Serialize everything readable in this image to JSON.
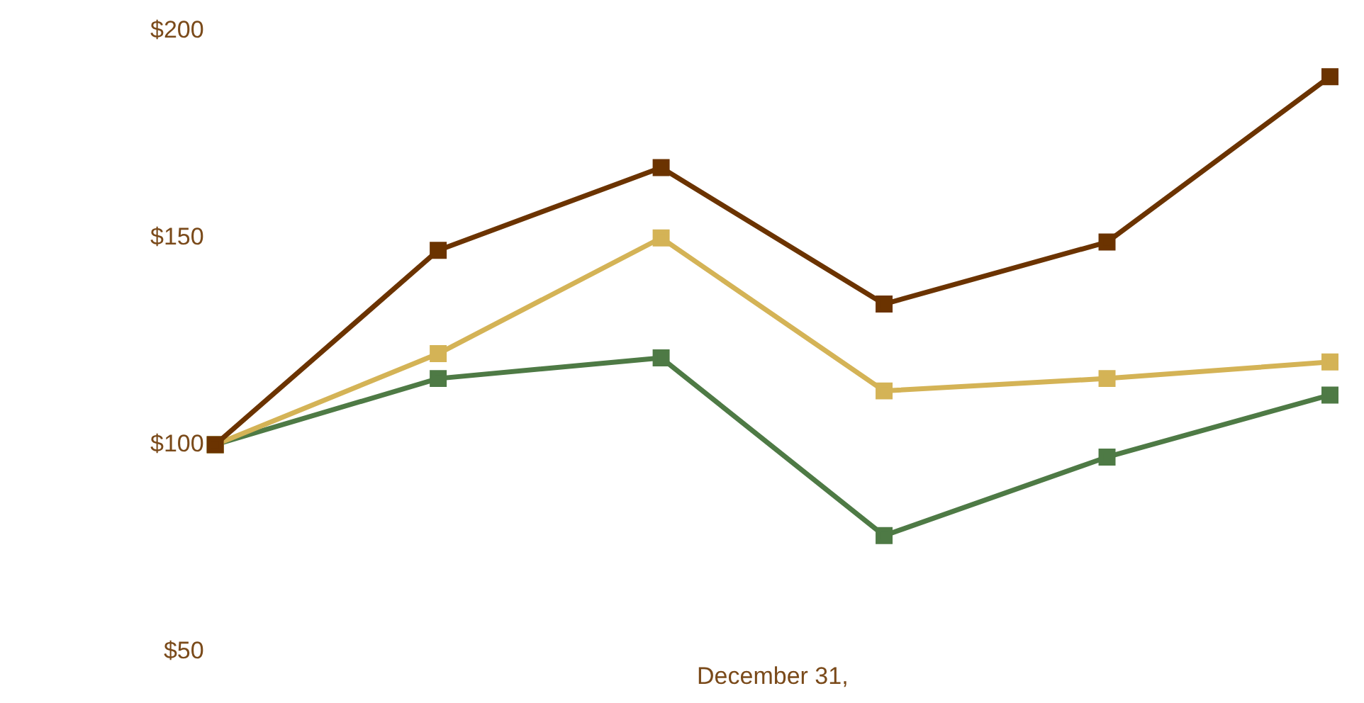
{
  "chart_data": {
    "type": "line",
    "xlabel": "December 31,",
    "categories": [
      null,
      null,
      null,
      null,
      null,
      null
    ],
    "series": [
      {
        "color": "#6b3300",
        "values": [
          100,
          147,
          167,
          134,
          149,
          189
        ]
      },
      {
        "color": "#d4b356",
        "values": [
          100,
          122,
          150,
          113,
          116,
          120
        ]
      },
      {
        "color": "#4e7a45",
        "values": [
          100,
          116,
          121,
          78,
          97,
          112
        ]
      }
    ],
    "ylim": [
      50,
      200
    ],
    "yticks": [
      {
        "value": 50,
        "label": "$50"
      },
      {
        "value": 100,
        "label": "$100"
      },
      {
        "value": 150,
        "label": "$150"
      },
      {
        "value": 200,
        "label": "$200"
      }
    ],
    "grid": false,
    "legend": false,
    "marker": "square",
    "line_style": "solid",
    "tick_labels": "y"
  }
}
